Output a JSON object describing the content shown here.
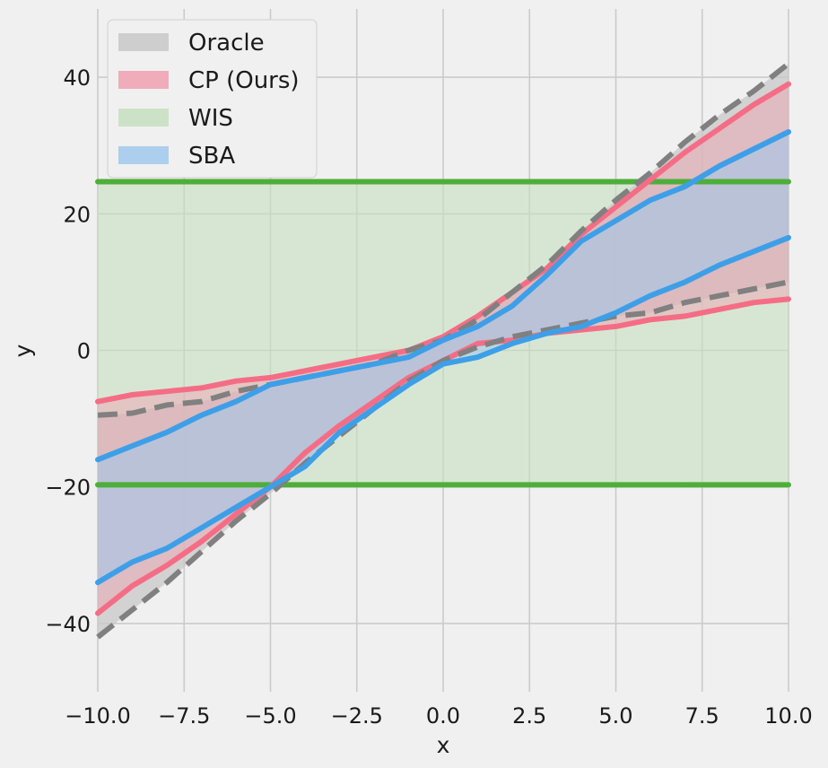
{
  "chart_data": {
    "type": "area",
    "title": "",
    "xlabel": "x",
    "ylabel": "y",
    "xlim": [
      -10,
      10
    ],
    "ylim": [
      -50,
      50
    ],
    "xticks": [
      -10,
      -7.5,
      -5,
      -2.5,
      0,
      2.5,
      5,
      7.5,
      10
    ],
    "xtick_labels": [
      "−10.0",
      "−7.5",
      "−5.0",
      "−2.5",
      "0.0",
      "2.5",
      "5.0",
      "7.5",
      "10.0"
    ],
    "yticks": [
      -40,
      -20,
      0,
      20,
      40
    ],
    "ytick_labels": [
      "−40",
      "−20",
      "0",
      "20",
      "40"
    ],
    "grid": true,
    "legend_position": "top-left",
    "x": [
      -10,
      -9,
      -8,
      -7,
      -6,
      -5,
      -4,
      -3,
      -2,
      -1,
      0,
      1,
      2,
      3,
      4,
      5,
      6,
      7,
      8,
      9,
      10
    ],
    "series": [
      {
        "name": "Oracle",
        "fill_color": "#c8c8c8",
        "line_color": "#808080",
        "lower": [
          -42,
          -38,
          -34,
          -29.5,
          -25,
          -21,
          -16.5,
          -12.5,
          -8.5,
          -4.5,
          -1.5,
          0.5,
          2,
          3,
          4,
          5,
          5.5,
          7,
          8,
          9,
          10
        ],
        "upper": [
          -9.5,
          -9.2,
          -8,
          -7.5,
          -6,
          -5,
          -4,
          -3,
          -2,
          0,
          1.5,
          4.5,
          8.5,
          12.5,
          17.5,
          22,
          26,
          30.5,
          34.5,
          38,
          42
        ]
      },
      {
        "name": "CP (Ours)",
        "fill_color": "#f0a0b0",
        "line_color": "#f56d85",
        "lower": [
          -38.5,
          -34.5,
          -31.5,
          -28,
          -24,
          -20,
          -15,
          -11,
          -7.5,
          -4,
          -1.5,
          1,
          1.5,
          2.5,
          3,
          3.5,
          4.5,
          5,
          6,
          7,
          7.5
        ],
        "upper": [
          -7.5,
          -6.5,
          -6,
          -5.5,
          -4.5,
          -4,
          -3,
          -2,
          -1,
          0,
          2,
          5,
          8.5,
          12,
          17,
          21,
          25,
          29,
          32.5,
          36,
          39
        ]
      },
      {
        "name": "WIS",
        "fill_color": "#c6dfc0",
        "line_color": "#4fae3a",
        "lower": [
          -19.7,
          -19.7,
          -19.7,
          -19.7,
          -19.7,
          -19.7,
          -19.7,
          -19.7,
          -19.7,
          -19.7,
          -19.7,
          -19.7,
          -19.7,
          -19.7,
          -19.7,
          -19.7,
          -19.7,
          -19.7,
          -19.7,
          -19.7,
          -19.7
        ],
        "upper": [
          24.7,
          24.7,
          24.7,
          24.7,
          24.7,
          24.7,
          24.7,
          24.7,
          24.7,
          24.7,
          24.7,
          24.7,
          24.7,
          24.7,
          24.7,
          24.7,
          24.7,
          24.7,
          24.7,
          24.7,
          24.7
        ]
      },
      {
        "name": "SBA",
        "fill_color": "#9fc9ec",
        "line_color": "#3d9fe8",
        "lower": [
          -34,
          -31,
          -29,
          -26,
          -23,
          -20,
          -17,
          -12,
          -8.5,
          -5,
          -2,
          -1,
          1,
          2.5,
          3.5,
          5.5,
          8,
          10,
          12.5,
          14.5,
          16.5
        ],
        "upper": [
          -16,
          -14,
          -12,
          -9.5,
          -7.5,
          -5,
          -4,
          -3,
          -2,
          -1,
          1.5,
          3.5,
          6.5,
          11,
          16,
          19,
          22,
          24,
          27,
          29.5,
          32
        ]
      }
    ]
  }
}
